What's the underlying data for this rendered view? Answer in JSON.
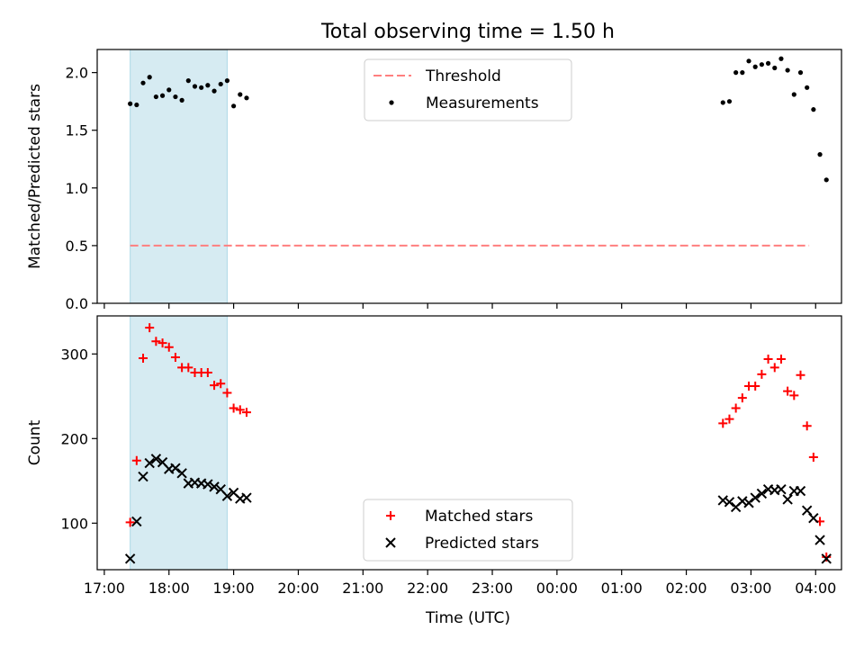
{
  "chart_data": {
    "title": "Total observing time = 1.50 h",
    "xlabel": "Time (UTC)",
    "x_tick_labels": [
      "17:00",
      "18:00",
      "19:00",
      "20:00",
      "21:00",
      "22:00",
      "23:00",
      "00:00",
      "01:00",
      "02:00",
      "03:00",
      "04:00"
    ],
    "x_range_hours_since_17utc": [
      -0.11,
      11.4
    ],
    "panels": [
      {
        "type": "scatter",
        "ylabel": "Matched/Predicted stars",
        "ylim": [
          0,
          2.2
        ],
        "y_ticks": [
          "0.0",
          "0.5",
          "1.0",
          "1.5",
          "2.0"
        ],
        "legend": {
          "placement": "top-center",
          "entries": [
            "Threshold",
            "Measurements"
          ]
        },
        "shaded_span": {
          "from": "17:24",
          "to": "18:54",
          "color": "#add8e6"
        },
        "threshold": {
          "name": "Threshold",
          "y": 0.5,
          "from": "17:24",
          "to": "03:54",
          "color": "#ff7f7f",
          "style": "dashed"
        },
        "series": [
          {
            "name": "Measurements",
            "marker": "dot",
            "color": "#000000",
            "points": [
              [
                "17:24",
                1.73
              ],
              [
                "17:30",
                1.72
              ],
              [
                "17:36",
                1.91
              ],
              [
                "17:42",
                1.96
              ],
              [
                "17:48",
                1.79
              ],
              [
                "17:54",
                1.8
              ],
              [
                "18:00",
                1.85
              ],
              [
                "18:06",
                1.79
              ],
              [
                "18:12",
                1.76
              ],
              [
                "18:18",
                1.93
              ],
              [
                "18:24",
                1.88
              ],
              [
                "18:30",
                1.87
              ],
              [
                "18:36",
                1.89
              ],
              [
                "18:42",
                1.84
              ],
              [
                "18:48",
                1.9
              ],
              [
                "18:54",
                1.93
              ],
              [
                "19:00",
                1.71
              ],
              [
                "19:06",
                1.81
              ],
              [
                "19:12",
                1.78
              ],
              [
                "02:34",
                1.74
              ],
              [
                "02:40",
                1.75
              ],
              [
                "02:46",
                2.0
              ],
              [
                "02:52",
                2.0
              ],
              [
                "02:58",
                2.1
              ],
              [
                "03:04",
                2.05
              ],
              [
                "03:10",
                2.07
              ],
              [
                "03:16",
                2.08
              ],
              [
                "03:22",
                2.04
              ],
              [
                "03:28",
                2.12
              ],
              [
                "03:34",
                2.02
              ],
              [
                "03:40",
                1.81
              ],
              [
                "03:46",
                2.0
              ],
              [
                "03:52",
                1.87
              ],
              [
                "03:58",
                1.68
              ],
              [
                "04:04",
                1.29
              ],
              [
                "04:10",
                1.07
              ]
            ]
          }
        ]
      },
      {
        "type": "scatter",
        "ylabel": "Count",
        "ylim": [
          45,
          345
        ],
        "y_ticks": [
          "100",
          "200",
          "300"
        ],
        "legend": {
          "placement": "bottom-center",
          "entries": [
            "Matched stars",
            "Predicted stars"
          ]
        },
        "shaded_span": {
          "from": "17:24",
          "to": "18:54",
          "color": "#add8e6"
        },
        "series": [
          {
            "name": "Matched stars",
            "marker": "plus",
            "color": "#ff0000",
            "points": [
              [
                "17:24",
                101
              ],
              [
                "17:30",
                174
              ],
              [
                "17:36",
                295
              ],
              [
                "17:42",
                331
              ],
              [
                "17:48",
                315
              ],
              [
                "17:54",
                313
              ],
              [
                "18:00",
                308
              ],
              [
                "18:06",
                296
              ],
              [
                "18:12",
                284
              ],
              [
                "18:18",
                284
              ],
              [
                "18:24",
                278
              ],
              [
                "18:30",
                278
              ],
              [
                "18:36",
                278
              ],
              [
                "18:42",
                263
              ],
              [
                "18:48",
                265
              ],
              [
                "18:54",
                254
              ],
              [
                "19:00",
                236
              ],
              [
                "19:06",
                234
              ],
              [
                "19:12",
                231
              ],
              [
                "02:34",
                218
              ],
              [
                "02:40",
                223
              ],
              [
                "02:46",
                236
              ],
              [
                "02:52",
                248
              ],
              [
                "02:58",
                262
              ],
              [
                "03:04",
                262
              ],
              [
                "03:10",
                276
              ],
              [
                "03:16",
                294
              ],
              [
                "03:22",
                284
              ],
              [
                "03:28",
                294
              ],
              [
                "03:34",
                256
              ],
              [
                "03:40",
                251
              ],
              [
                "03:46",
                275
              ],
              [
                "03:52",
                215
              ],
              [
                "03:58",
                178
              ],
              [
                "04:04",
                102
              ],
              [
                "04:10",
                60
              ]
            ]
          },
          {
            "name": "Predicted stars",
            "marker": "x",
            "color": "#000000",
            "points": [
              [
                "17:24",
                58
              ],
              [
                "17:30",
                102
              ],
              [
                "17:36",
                155
              ],
              [
                "17:42",
                171
              ],
              [
                "17:48",
                176
              ],
              [
                "17:54",
                172
              ],
              [
                "18:00",
                164
              ],
              [
                "18:06",
                165
              ],
              [
                "18:12",
                159
              ],
              [
                "18:18",
                147
              ],
              [
                "18:24",
                148
              ],
              [
                "18:30",
                147
              ],
              [
                "18:36",
                146
              ],
              [
                "18:42",
                143
              ],
              [
                "18:48",
                140
              ],
              [
                "18:54",
                132
              ],
              [
                "19:00",
                136
              ],
              [
                "19:06",
                129
              ],
              [
                "19:12",
                130
              ],
              [
                "02:34",
                127
              ],
              [
                "02:40",
                125
              ],
              [
                "02:46",
                119
              ],
              [
                "02:52",
                126
              ],
              [
                "02:58",
                124
              ],
              [
                "03:04",
                130
              ],
              [
                "03:10",
                135
              ],
              [
                "03:16",
                140
              ],
              [
                "03:22",
                139
              ],
              [
                "03:28",
                140
              ],
              [
                "03:34",
                128
              ],
              [
                "03:40",
                138
              ],
              [
                "03:46",
                138
              ],
              [
                "03:52",
                115
              ],
              [
                "03:58",
                106
              ],
              [
                "04:04",
                80
              ],
              [
                "04:10",
                58
              ]
            ]
          }
        ]
      }
    ]
  }
}
